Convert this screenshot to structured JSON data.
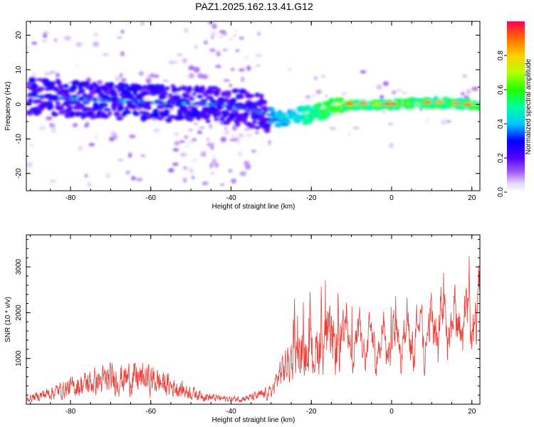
{
  "title": "PAZ1.2025.162.13.41.G12",
  "colors": {
    "snr_line": "#e8403a",
    "axis": "#000000",
    "background": "#ffffff"
  },
  "chart_data": [
    {
      "type": "heatmap",
      "xlabel": "Height of straight line (km)",
      "ylabel": "Frequency (Hz)",
      "xlim": [
        -91,
        22
      ],
      "ylim": [
        -25,
        24
      ],
      "xticks": [
        "-80",
        "-60",
        "-40",
        "-20",
        "0",
        "20"
      ],
      "yticks": [
        "20",
        "10",
        "0",
        "-10",
        "-20"
      ],
      "colorbar": {
        "label": "Normalized spectral amplitude",
        "range": [
          0,
          1
        ],
        "ticks": [
          "0.0",
          "0.2",
          "0.4",
          "0.6",
          "0.8"
        ]
      },
      "ridge": {
        "description_points": [
          [
            -90,
            2.5
          ],
          [
            -80,
            1.5
          ],
          [
            -60,
            0.5
          ],
          [
            -45,
            0
          ],
          [
            -35,
            -1.5
          ],
          [
            -28,
            -4
          ],
          [
            -20,
            -3
          ],
          [
            -15,
            -1
          ],
          [
            -10,
            0
          ],
          [
            0,
            0
          ],
          [
            10,
            0.5
          ],
          [
            22,
            0
          ]
        ],
        "peak_amplitude_region_km": [
          -12,
          22
        ]
      }
    },
    {
      "type": "line",
      "xlabel": "Height of straight line (km)",
      "ylabel": "SNR (10 * v/v)",
      "xlim": [
        -91,
        22
      ],
      "ylim": [
        0,
        3700
      ],
      "xticks": [
        "-80",
        "-60",
        "-40",
        "-20",
        "0",
        "20"
      ],
      "yticks": [
        "1000",
        "2000",
        "3000"
      ],
      "series": [
        {
          "color": "#e8403a",
          "envelope": {
            "x": [
              -91,
              -85,
              -80,
              -75,
              -70,
              -65,
              -60,
              -55,
              -50,
              -45,
              -40,
              -35,
              -30,
              -28,
              -25,
              -22,
              -20,
              -18,
              -16,
              -14,
              -12,
              -10,
              -8,
              -6,
              -4,
              -2,
              0,
              2,
              4,
              6,
              8,
              10,
              12,
              14,
              16,
              18,
              20,
              22
            ],
            "y": [
              150,
              350,
              500,
              650,
              750,
              800,
              750,
              550,
              350,
              200,
              150,
              200,
              350,
              900,
              1300,
              1400,
              1400,
              1700,
              1900,
              1650,
              1750,
              1900,
              1850,
              1800,
              2000,
              1950,
              1850,
              2000,
              2100,
              2150,
              2200,
              2250,
              2400,
              2500,
              2350,
              2450,
              2550,
              2600
            ]
          }
        }
      ]
    }
  ]
}
